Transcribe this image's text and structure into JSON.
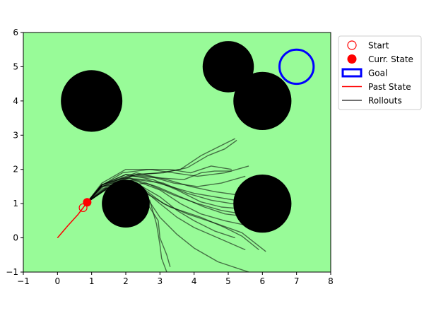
{
  "chart_data": {
    "type": "scatter",
    "title": "",
    "xlabel": "",
    "ylabel": "",
    "xlim": [
      -1,
      8
    ],
    "ylim": [
      -1,
      6
    ],
    "x_ticks": [
      "−1",
      "0",
      "1",
      "2",
      "3",
      "4",
      "5",
      "6",
      "7",
      "8"
    ],
    "y_ticks": [
      "−1",
      "0",
      "1",
      "2",
      "3",
      "4",
      "5",
      "6"
    ],
    "background_color": "#98fb98",
    "grid": false,
    "legend_position": "outside-top-right",
    "legend": [
      {
        "key": "start",
        "label": "Start",
        "color": "#ff0000"
      },
      {
        "key": "curr",
        "label": "Curr. State",
        "color": "#ff0000"
      },
      {
        "key": "goal",
        "label": "Goal",
        "color": "#0000ff"
      },
      {
        "key": "past",
        "label": "Past State",
        "color": "#ff0000"
      },
      {
        "key": "rollouts",
        "label": "Rollouts",
        "color": "#404040"
      }
    ],
    "obstacles": [
      {
        "x": 1,
        "y": 4,
        "r": 0.9
      },
      {
        "x": 5,
        "y": 5,
        "r": 0.75
      },
      {
        "x": 6,
        "y": 4,
        "r": 0.85
      },
      {
        "x": 2,
        "y": 1,
        "r": 0.7
      },
      {
        "x": 6,
        "y": 1,
        "r": 0.85
      }
    ],
    "goal": {
      "x": 7,
      "y": 5,
      "r": 0.5
    },
    "start": {
      "x": 0.75,
      "y": 0.88
    },
    "current_state": {
      "x": 0.87,
      "y": 1.04
    },
    "past_state": [
      [
        0,
        0
      ],
      [
        0.3,
        0.35
      ],
      [
        0.6,
        0.68
      ],
      [
        0.75,
        0.88
      ],
      [
        0.87,
        1.04
      ]
    ],
    "rollouts": [
      [
        [
          0.87,
          1.04
        ],
        [
          1.3,
          1.5
        ],
        [
          1.9,
          1.75
        ],
        [
          2.6,
          1.7
        ],
        [
          3.3,
          1.5
        ],
        [
          4.0,
          1.3
        ],
        [
          4.6,
          1.2
        ],
        [
          5.2,
          1.1
        ]
      ],
      [
        [
          0.87,
          1.04
        ],
        [
          1.3,
          1.55
        ],
        [
          2.0,
          1.85
        ],
        [
          2.7,
          1.8
        ],
        [
          3.4,
          1.6
        ],
        [
          4.1,
          1.5
        ],
        [
          4.8,
          1.6
        ],
        [
          5.5,
          1.8
        ]
      ],
      [
        [
          0.87,
          1.04
        ],
        [
          1.25,
          1.5
        ],
        [
          1.9,
          1.9
        ],
        [
          2.7,
          2.0
        ],
        [
          3.4,
          1.9
        ],
        [
          4.1,
          1.8
        ],
        [
          4.9,
          1.9
        ],
        [
          5.6,
          2.1
        ]
      ],
      [
        [
          0.87,
          1.04
        ],
        [
          1.3,
          1.6
        ],
        [
          2.0,
          2.0
        ],
        [
          2.7,
          2.0
        ],
        [
          3.3,
          2.0
        ],
        [
          3.9,
          1.9
        ],
        [
          4.5,
          2.1
        ],
        [
          5.1,
          2.0
        ]
      ],
      [
        [
          0.87,
          1.04
        ],
        [
          1.3,
          1.55
        ],
        [
          2.0,
          1.85
        ],
        [
          2.8,
          1.7
        ],
        [
          3.5,
          1.4
        ],
        [
          4.2,
          1.05
        ],
        [
          4.8,
          0.9
        ],
        [
          5.4,
          0.85
        ]
      ],
      [
        [
          0.87,
          1.04
        ],
        [
          1.3,
          1.5
        ],
        [
          2.1,
          1.75
        ],
        [
          2.9,
          1.5
        ],
        [
          3.6,
          1.2
        ],
        [
          4.3,
          0.9
        ],
        [
          4.9,
          0.7
        ],
        [
          5.3,
          0.65
        ]
      ],
      [
        [
          0.87,
          1.04
        ],
        [
          1.35,
          1.45
        ],
        [
          2.2,
          1.7
        ],
        [
          3.0,
          1.4
        ],
        [
          3.6,
          1.0
        ],
        [
          4.2,
          0.7
        ],
        [
          4.9,
          0.5
        ],
        [
          5.6,
          0.35
        ]
      ],
      [
        [
          0.87,
          1.04
        ],
        [
          1.35,
          1.5
        ],
        [
          2.3,
          1.7
        ],
        [
          3.1,
          1.6
        ],
        [
          3.8,
          1.3
        ],
        [
          4.5,
          1.1
        ],
        [
          5.1,
          1.0
        ],
        [
          5.5,
          0.95
        ]
      ],
      [
        [
          0.87,
          1.04
        ],
        [
          1.3,
          1.55
        ],
        [
          2.3,
          1.9
        ],
        [
          3.2,
          1.7
        ],
        [
          3.9,
          1.5
        ],
        [
          4.6,
          1.35
        ],
        [
          5.3,
          1.25
        ],
        [
          5.9,
          1.2
        ]
      ],
      [
        [
          0.87,
          1.04
        ],
        [
          1.3,
          1.55
        ],
        [
          2.3,
          1.85
        ],
        [
          3.0,
          1.9
        ],
        [
          3.6,
          2.0
        ],
        [
          4.2,
          2.4
        ],
        [
          4.8,
          2.7
        ],
        [
          5.2,
          2.9
        ]
      ],
      [
        [
          0.87,
          1.04
        ],
        [
          1.3,
          1.55
        ],
        [
          2.3,
          1.85
        ],
        [
          3.1,
          1.9
        ],
        [
          3.8,
          2.05
        ],
        [
          4.4,
          2.4
        ],
        [
          4.9,
          2.6
        ],
        [
          5.25,
          2.85
        ]
      ],
      [
        [
          0.87,
          1.04
        ],
        [
          1.3,
          1.5
        ],
        [
          2.2,
          1.8
        ],
        [
          3.0,
          1.75
        ],
        [
          3.7,
          1.7
        ],
        [
          4.2,
          1.9
        ],
        [
          4.6,
          1.95
        ],
        [
          5.1,
          1.95
        ]
      ],
      [
        [
          0.87,
          1.04
        ],
        [
          1.3,
          1.5
        ],
        [
          2.3,
          1.6
        ],
        [
          3.0,
          1.2
        ],
        [
          3.5,
          0.8
        ],
        [
          4.0,
          0.5
        ],
        [
          4.6,
          0.2
        ],
        [
          5.2,
          0.0
        ]
      ],
      [
        [
          0.87,
          1.04
        ],
        [
          1.4,
          1.45
        ],
        [
          2.4,
          1.5
        ],
        [
          3.0,
          1.0
        ],
        [
          3.5,
          0.6
        ],
        [
          4.0,
          0.3
        ],
        [
          4.7,
          0.0
        ],
        [
          5.5,
          -0.35
        ]
      ],
      [
        [
          0.87,
          1.04
        ],
        [
          1.4,
          1.4
        ],
        [
          2.5,
          1.45
        ],
        [
          3.1,
          1.0
        ],
        [
          3.8,
          0.7
        ],
        [
          4.7,
          0.4
        ],
        [
          5.4,
          0.15
        ],
        [
          6.1,
          -0.4
        ]
      ],
      [
        [
          0.87,
          1.04
        ],
        [
          1.4,
          1.4
        ],
        [
          2.6,
          1.3
        ],
        [
          3.3,
          0.9
        ],
        [
          4.2,
          0.6
        ],
        [
          4.9,
          0.3
        ],
        [
          5.4,
          0.05
        ],
        [
          5.9,
          -0.35
        ]
      ],
      [
        [
          0.87,
          1.04
        ],
        [
          1.4,
          1.4
        ],
        [
          2.6,
          1.2
        ],
        [
          3.0,
          0.6
        ],
        [
          3.5,
          0.1
        ],
        [
          4.0,
          -0.3
        ],
        [
          4.7,
          -0.7
        ],
        [
          5.6,
          -1.0
        ]
      ],
      [
        [
          0.87,
          1.04
        ],
        [
          1.45,
          1.45
        ],
        [
          2.7,
          1.1
        ],
        [
          2.9,
          0.4
        ],
        [
          3.0,
          -0.2
        ],
        [
          3.05,
          -0.6
        ],
        [
          3.2,
          -1.0
        ]
      ],
      [
        [
          0.87,
          1.04
        ],
        [
          1.45,
          1.45
        ],
        [
          2.5,
          1.2
        ],
        [
          2.95,
          0.5
        ],
        [
          3.0,
          0.0
        ],
        [
          3.2,
          -0.5
        ],
        [
          3.3,
          -0.85
        ]
      ],
      [
        [
          0.87,
          1.04
        ],
        [
          1.4,
          1.45
        ],
        [
          2.6,
          1.6
        ],
        [
          3.4,
          1.25
        ],
        [
          4.1,
          1.0
        ],
        [
          4.8,
          0.8
        ],
        [
          5.4,
          0.7
        ],
        [
          6.0,
          0.6
        ]
      ]
    ]
  }
}
